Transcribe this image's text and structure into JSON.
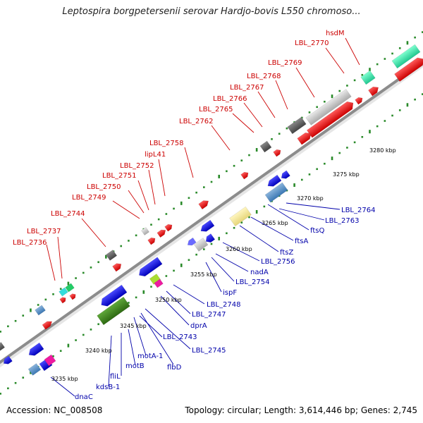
{
  "title": "Leptospira borgpetersenii serovar Hardjo-bovis L550 chromoso...",
  "footer": {
    "accession": "Accession: NC_008508",
    "summary": "Topology: circular; Length: 3,614,446 bp; Genes: 2,745"
  },
  "colors": {
    "forward_label": "#cc0000",
    "reverse_label": "#0000aa",
    "backbone": "#888888",
    "tick_dots": "#2a8a2a"
  },
  "scale_labels": [
    "3235 kbp",
    "3240 kbp",
    "3245 kbp",
    "3250 kbp",
    "3255 kbp",
    "3260 kbp",
    "3265 kbp",
    "3270 kbp",
    "3275 kbp",
    "3280 kbp"
  ],
  "forward_genes": [
    "LBL_2736",
    "LBL_2737",
    "LBL_2744",
    "LBL_2749",
    "LBL_2750",
    "LBL_2751",
    "LBL_2752",
    "lipL41",
    "LBL_2758",
    "LBL_2762",
    "LBL_2765",
    "LBL_2766",
    "LBL_2767",
    "LBL_2768",
    "LBL_2769",
    "LBL_2770",
    "hsdM"
  ],
  "reverse_genes": [
    "dnaC",
    "kdsB-1",
    "fliL",
    "motB",
    "motA-1",
    "flbD",
    "LBL_2743",
    "LBL_2745",
    "dprA",
    "LBL_2747",
    "LBL_2748",
    "ispF",
    "LBL_2754",
    "nadA",
    "LBL_2756",
    "ftsZ",
    "ftsA",
    "ftsQ",
    "LBL_2763",
    "LBL_2764"
  ]
}
